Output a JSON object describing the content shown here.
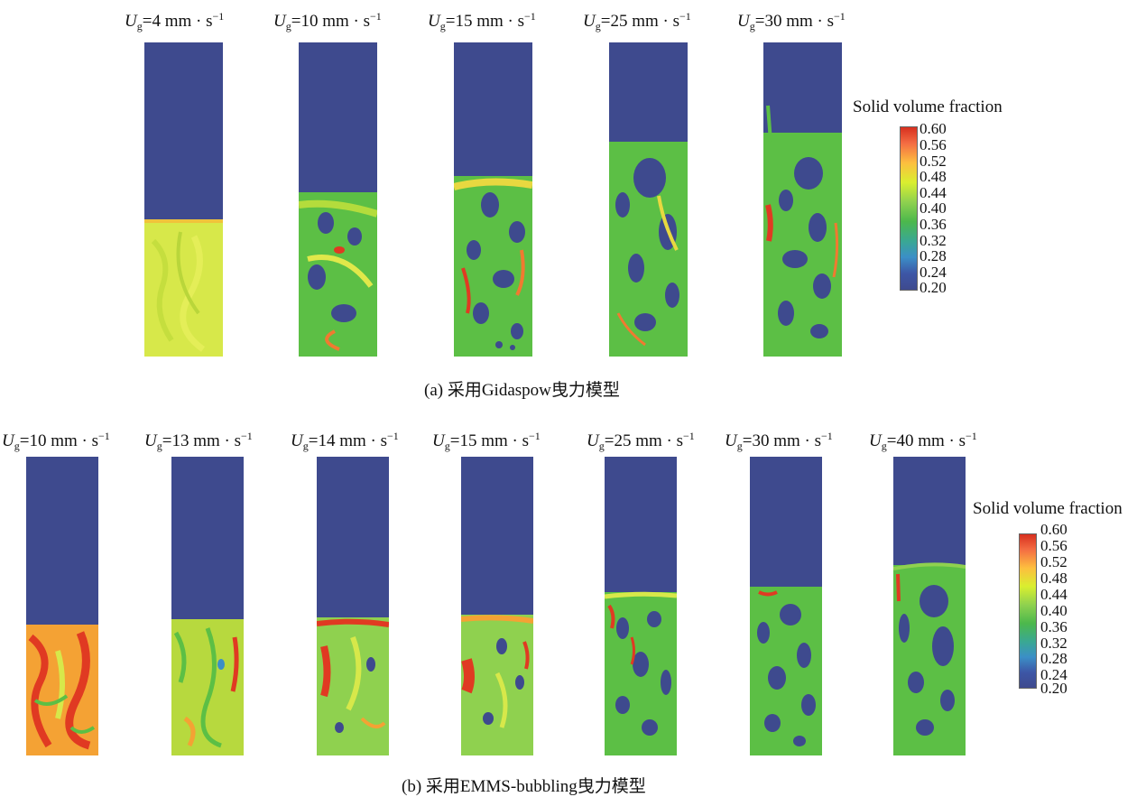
{
  "colorbar": {
    "title": "Solid volume fraction",
    "ticks": [
      "0.60",
      "0.56",
      "0.52",
      "0.48",
      "0.44",
      "0.40",
      "0.36",
      "0.32",
      "0.28",
      "0.24",
      "0.20"
    ]
  },
  "panel_a": {
    "caption": "(a) 采用Gidaspow曳力模型",
    "labels": [
      {
        "sym": "U",
        "sub": "g",
        "val": "=4 mm · s",
        "sup": "−1"
      },
      {
        "sym": "U",
        "sub": "g",
        "val": "=10 mm · s",
        "sup": "−1"
      },
      {
        "sym": "U",
        "sub": "g",
        "val": "=15 mm · s",
        "sup": "−1"
      },
      {
        "sym": "U",
        "sub": "g",
        "val": "=25 mm · s",
        "sup": "−1"
      },
      {
        "sym": "U",
        "sub": "g",
        "val": "=30 mm · s",
        "sup": "−1"
      }
    ]
  },
  "panel_b": {
    "caption": "(b) 采用EMMS-bubbling曳力模型",
    "labels": [
      {
        "sym": "U",
        "sub": "g",
        "val": "=10 mm · s",
        "sup": "−1"
      },
      {
        "sym": "U",
        "sub": "g",
        "val": "=13 mm · s",
        "sup": "−1"
      },
      {
        "sym": "U",
        "sub": "g",
        "val": "=14 mm · s",
        "sup": "−1"
      },
      {
        "sym": "U",
        "sub": "g",
        "val": "=15 mm · s",
        "sup": "−1"
      },
      {
        "sym": "U",
        "sub": "g",
        "val": "=25 mm · s",
        "sup": "−1"
      },
      {
        "sym": "U",
        "sub": "g",
        "val": "=30 mm · s",
        "sup": "−1"
      },
      {
        "sym": "U",
        "sub": "g",
        "val": "=40 mm · s",
        "sup": "−1"
      }
    ]
  },
  "colors": {
    "empty": "#3e4a8e",
    "dense_yellow": "#d7e84a",
    "medium_green": "#5cbf45",
    "red": "#e03a22"
  }
}
